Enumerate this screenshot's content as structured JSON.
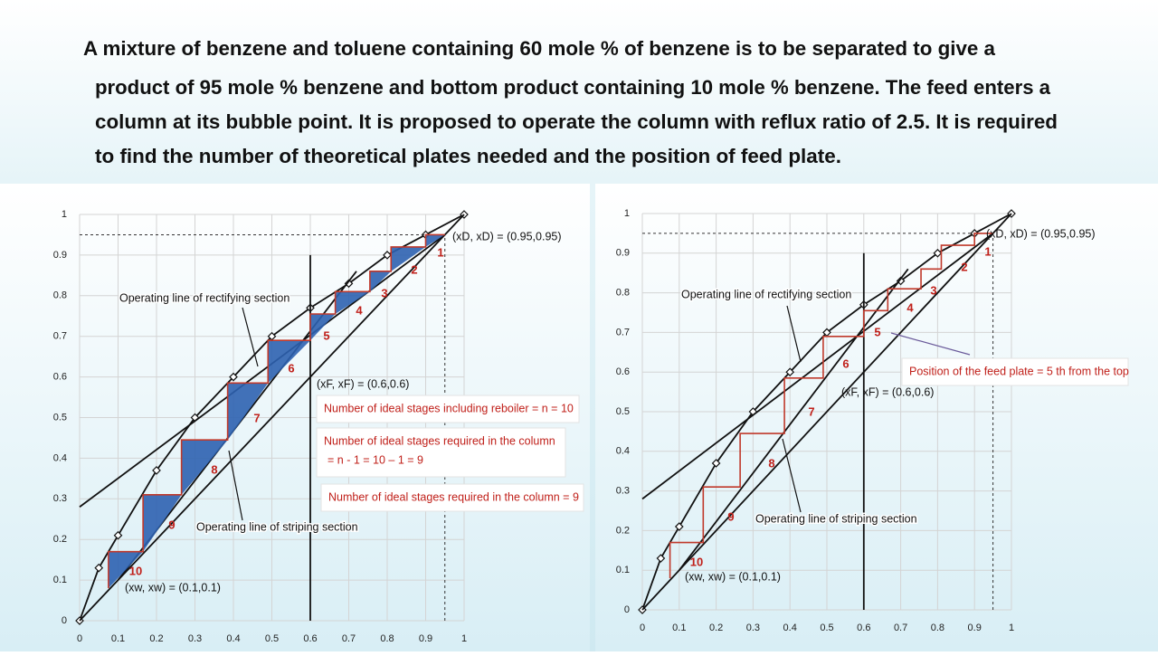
{
  "problem": {
    "lines": [
      "A mixture of benzene and toluene containing 60 mole % of benzene is to be separated to give a",
      "product of 95 mole % benzene and bottom product containing 10 mole % benzene. The feed enters a",
      "column at its bubble point. It is proposed to operate the column with reflux ratio of 2.5. It is required",
      "to find the number of theoretical plates needed and the position of feed plate."
    ]
  },
  "chart_data": [
    {
      "type": "line",
      "xlim": [
        0,
        1
      ],
      "ylim": [
        0,
        1
      ],
      "xticks": [
        0,
        0.1,
        0.2,
        0.3,
        0.4,
        0.5,
        0.6,
        0.7,
        0.8,
        0.9,
        1
      ],
      "yticks": [
        0,
        0.1,
        0.2,
        0.3,
        0.4,
        0.5,
        0.6,
        0.7,
        0.8,
        0.9,
        1
      ],
      "grid": true,
      "series": [
        {
          "x": [
            0,
            0.05,
            0.1,
            0.2,
            0.3,
            0.4,
            0.5,
            0.6,
            0.7,
            0.8,
            0.9,
            1
          ],
          "values": [
            0,
            0.13,
            0.21,
            0.37,
            0.5,
            0.6,
            0.7,
            0.77,
            0.83,
            0.9,
            0.95,
            1
          ],
          "color": "#111111",
          "marker": "diamond"
        },
        {
          "x": [
            0,
            1
          ],
          "values": [
            0,
            1
          ],
          "color": "#111111"
        },
        {
          "x": [
            0,
            0.95
          ],
          "values": [
            0.28,
            0.95
          ],
          "color": "#111111"
        },
        {
          "x": [
            0.1,
            0.72
          ],
          "values": [
            0.1,
            0.86
          ],
          "color": "#111111"
        },
        {
          "x": [
            0.6,
            0.6
          ],
          "values": [
            0,
            0.9
          ],
          "color": "#111111"
        },
        {
          "x": [
            0,
            0.95
          ],
          "values": [
            0.95,
            0.95
          ],
          "color": "#333333",
          "dash": true
        },
        {
          "x": [
            0.95,
            0.95
          ],
          "values": [
            0,
            0.95
          ],
          "color": "#333333",
          "dash": true
        },
        {
          "x": [
            0.95,
            0.9,
            0.9,
            0.81,
            0.81,
            0.755,
            0.755,
            0.665,
            0.665,
            0.6,
            0.6,
            0.49,
            0.49,
            0.385,
            0.385,
            0.265,
            0.265,
            0.165,
            0.165,
            0.075,
            0.075
          ],
          "values": [
            0.95,
            0.95,
            0.92,
            0.92,
            0.86,
            0.86,
            0.81,
            0.81,
            0.755,
            0.755,
            0.69,
            0.69,
            0.585,
            0.585,
            0.445,
            0.445,
            0.31,
            0.31,
            0.17,
            0.17,
            0.08
          ],
          "color": "#c0392b",
          "fill": "#2e62b0",
          "staircase": true
        }
      ],
      "step_labels": [
        "1",
        "2",
        "3",
        "4",
        "5",
        "6",
        "7",
        "8",
        "9",
        "10"
      ],
      "annotations": [
        "(xD, xD) = (0.95,0.95)",
        "Operating line of rectifying section",
        "Operating line of striping section",
        "(xF, xF) = (0.6,0.6)",
        "(xw, xw) = (0.1,0.1)"
      ],
      "boxes": [
        [
          "Number of ideal stages including reboiler = n = 10"
        ],
        [
          "Number of ideal stages required in the column",
          "= n - 1 = 10 – 1 = 9"
        ],
        [
          "Number of ideal stages required in the column = 9"
        ]
      ]
    },
    {
      "type": "line",
      "xlim": [
        0,
        1
      ],
      "ylim": [
        0,
        1
      ],
      "xticks": [
        0,
        0.1,
        0.2,
        0.3,
        0.4,
        0.5,
        0.6,
        0.7,
        0.8,
        0.9,
        1
      ],
      "yticks": [
        0,
        0.1,
        0.2,
        0.3,
        0.4,
        0.5,
        0.6,
        0.7,
        0.8,
        0.9,
        1
      ],
      "grid": true,
      "series": [
        {
          "x": [
            0,
            0.05,
            0.1,
            0.2,
            0.3,
            0.4,
            0.5,
            0.6,
            0.7,
            0.8,
            0.9,
            1
          ],
          "values": [
            0,
            0.13,
            0.21,
            0.37,
            0.5,
            0.6,
            0.7,
            0.77,
            0.83,
            0.9,
            0.95,
            1
          ],
          "color": "#111111",
          "marker": "diamond"
        },
        {
          "x": [
            0,
            1
          ],
          "values": [
            0,
            1
          ],
          "color": "#111111"
        },
        {
          "x": [
            0,
            0.95
          ],
          "values": [
            0.28,
            0.95
          ],
          "color": "#111111"
        },
        {
          "x": [
            0.1,
            0.72
          ],
          "values": [
            0.1,
            0.86
          ],
          "color": "#111111"
        },
        {
          "x": [
            0.6,
            0.6
          ],
          "values": [
            0,
            0.9
          ],
          "color": "#111111"
        },
        {
          "x": [
            0,
            0.95
          ],
          "values": [
            0.95,
            0.95
          ],
          "color": "#333333",
          "dash": true
        },
        {
          "x": [
            0.95,
            0.95
          ],
          "values": [
            0,
            0.95
          ],
          "color": "#333333",
          "dash": true
        },
        {
          "x": [
            0.95,
            0.9,
            0.9,
            0.81,
            0.81,
            0.755,
            0.755,
            0.665,
            0.665,
            0.6,
            0.6,
            0.49,
            0.49,
            0.385,
            0.385,
            0.265,
            0.265,
            0.165,
            0.165,
            0.075,
            0.075
          ],
          "values": [
            0.95,
            0.95,
            0.92,
            0.92,
            0.86,
            0.86,
            0.81,
            0.81,
            0.755,
            0.755,
            0.69,
            0.69,
            0.585,
            0.585,
            0.445,
            0.445,
            0.31,
            0.31,
            0.17,
            0.17,
            0.08
          ],
          "color": "#c0392b",
          "staircase": true
        }
      ],
      "step_labels": [
        "1",
        "2",
        "3",
        "4",
        "5",
        "6",
        "7",
        "8",
        "9",
        "10"
      ],
      "annotations": [
        "(xD, xD) = (0.95,0.95)",
        "Operating line of rectifying section",
        "Operating line of striping section",
        "(xF, xF) = (0.6,0.6)",
        "(xw, xw) = (0.1,0.1)"
      ],
      "boxes": [
        [
          "Position of the feed plate = 5 th from the top"
        ]
      ]
    }
  ]
}
